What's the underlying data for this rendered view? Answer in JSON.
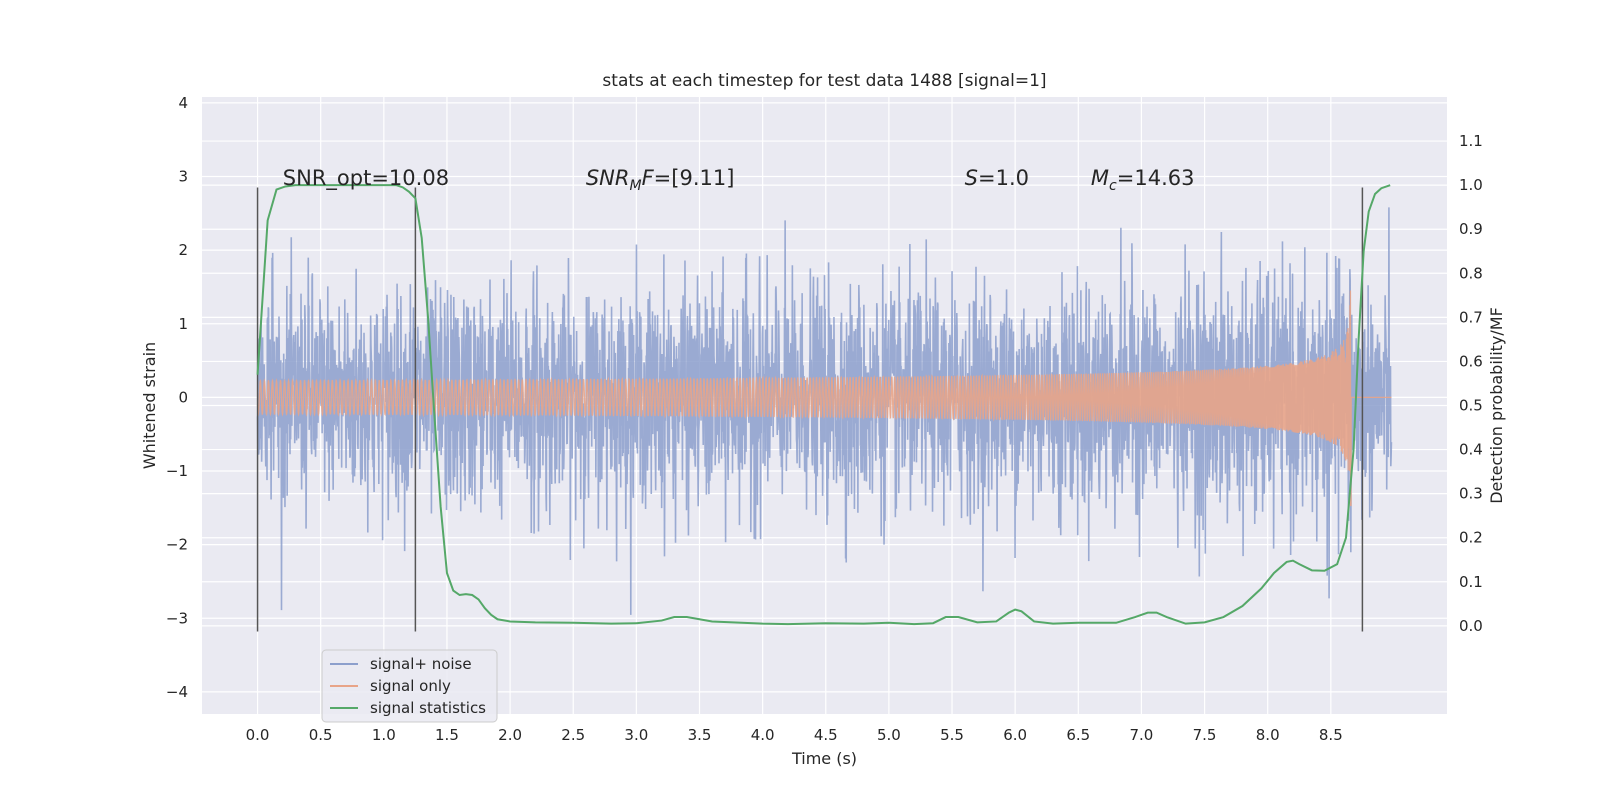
{
  "chart_data": {
    "type": "line",
    "title": "stats at each timestep for test data 1488 [signal=1]",
    "xlabel": "Time (s)",
    "ylabel": "Whitened strain",
    "ylabel_right": "Detection probability/MF",
    "xlim": [
      -0.44,
      9.42
    ],
    "ylim": [
      -4.3,
      4.08
    ],
    "ylim_right": [
      -0.2,
      1.2
    ],
    "x_ticks": [
      "0.0",
      "0.5",
      "1.0",
      "1.5",
      "2.0",
      "2.5",
      "3.0",
      "3.5",
      "4.0",
      "4.5",
      "5.0",
      "5.5",
      "6.0",
      "6.5",
      "7.0",
      "7.5",
      "8.0",
      "8.5"
    ],
    "y_ticks": [
      "4",
      "3",
      "2",
      "1",
      "0",
      "−1",
      "−2",
      "−3",
      "−4"
    ],
    "y_ticks_right": [
      "0.0",
      "0.1",
      "0.2",
      "0.3",
      "0.4",
      "0.5",
      "0.6",
      "0.7",
      "0.8",
      "0.9",
      "1.0",
      "1.1"
    ],
    "grid": true,
    "legend_position": "lower-left",
    "annotations": [
      {
        "name": "snr-opt",
        "text": "SNR_opt=10.08",
        "x": 0.2,
        "y": 2.98
      },
      {
        "name": "snr-mf",
        "text": "SNRMF=[9.11]",
        "main": "SNR",
        "sub": "M",
        "tail": "F=[9.11]",
        "x": 2.6,
        "y": 2.98
      },
      {
        "name": "s-value",
        "text": "S=1.0",
        "main": "S",
        "tail": "=1.0",
        "x": 5.6,
        "y": 2.98
      },
      {
        "name": "mc-value",
        "text": "Mc=14.63",
        "main": "M",
        "sub": "c",
        "tail": "=14.63",
        "x": 6.6,
        "y": 2.98
      }
    ],
    "vertical_lines": [
      {
        "x": 0.0,
        "y0": -3.18,
        "y1": 2.85
      },
      {
        "x": 1.25,
        "y0": -3.18,
        "y1": 2.85
      },
      {
        "x": 8.75,
        "y0": -3.18,
        "y1": 2.85
      }
    ],
    "series": [
      {
        "name": "signal+ noise",
        "color": "#8c9fcc",
        "axis": "left",
        "x_range": [
          0.0,
          8.98
        ],
        "noise_sigma": 0.72
      },
      {
        "name": "signal only",
        "color": "#e8a488",
        "axis": "left",
        "x_range": [
          0.0,
          8.98
        ],
        "chirp_end": 8.66,
        "peak_amplitude": 1.72
      },
      {
        "name": "signal statistics",
        "color": "#55a868",
        "axis": "right",
        "x": [
          0.0,
          0.08,
          0.15,
          0.22,
          0.3,
          0.5,
          0.7,
          0.9,
          1.1,
          1.15,
          1.2,
          1.25,
          1.3,
          1.35,
          1.4,
          1.45,
          1.5,
          1.55,
          1.6,
          1.65,
          1.7,
          1.75,
          1.8,
          1.85,
          1.9,
          2.0,
          2.2,
          2.5,
          2.8,
          3.0,
          3.2,
          3.3,
          3.4,
          3.6,
          4.0,
          4.2,
          4.5,
          4.8,
          5.0,
          5.2,
          5.35,
          5.45,
          5.55,
          5.7,
          5.85,
          5.95,
          6.0,
          6.05,
          6.15,
          6.3,
          6.5,
          6.8,
          6.95,
          7.05,
          7.12,
          7.2,
          7.35,
          7.5,
          7.65,
          7.8,
          7.95,
          8.05,
          8.15,
          8.2,
          8.25,
          8.35,
          8.45,
          8.55,
          8.62,
          8.68,
          8.72,
          8.76,
          8.8,
          8.85,
          8.9,
          8.97
        ],
        "y": [
          0.57,
          0.92,
          0.99,
          0.997,
          1.0,
          1.0,
          1.0,
          1.0,
          1.0,
          0.995,
          0.985,
          0.97,
          0.88,
          0.7,
          0.48,
          0.27,
          0.12,
          0.08,
          0.07,
          0.072,
          0.07,
          0.06,
          0.04,
          0.025,
          0.015,
          0.01,
          0.008,
          0.007,
          0.005,
          0.006,
          0.012,
          0.02,
          0.02,
          0.01,
          0.005,
          0.004,
          0.006,
          0.005,
          0.007,
          0.004,
          0.006,
          0.02,
          0.02,
          0.008,
          0.01,
          0.03,
          0.037,
          0.033,
          0.01,
          0.005,
          0.007,
          0.007,
          0.02,
          0.03,
          0.03,
          0.02,
          0.005,
          0.008,
          0.02,
          0.045,
          0.085,
          0.12,
          0.145,
          0.148,
          0.14,
          0.126,
          0.125,
          0.14,
          0.2,
          0.4,
          0.65,
          0.85,
          0.94,
          0.98,
          0.993,
          1.0
        ]
      }
    ]
  }
}
